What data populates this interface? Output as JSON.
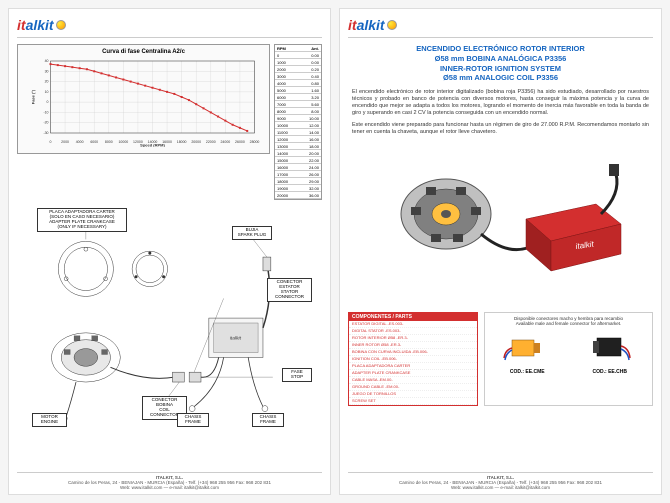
{
  "logo": {
    "part1": "it",
    "part2": "alkit"
  },
  "page1": {
    "chart": {
      "title": "Curva di fase Centralina A2/c",
      "xlabel": "Speed (RPM)",
      "ylabel": "Fase (°)",
      "xmin": 0,
      "xmax": 28000,
      "ymin": -30,
      "ymax": 40,
      "xticks": [
        0,
        2000,
        4000,
        6000,
        8000,
        10000,
        12000,
        14000,
        16000,
        18000,
        20000,
        22000,
        24000,
        26000,
        28000
      ],
      "yticks": [
        -30,
        -20,
        -10,
        0,
        10,
        20,
        30,
        40
      ],
      "line_color": "#d32f2f",
      "grid_color": "#cccccc",
      "points": [
        [
          0,
          37
        ],
        [
          1000,
          36
        ],
        [
          2000,
          35
        ],
        [
          3000,
          34
        ],
        [
          4000,
          33
        ],
        [
          5000,
          32
        ],
        [
          6000,
          30
        ],
        [
          7000,
          28
        ],
        [
          8000,
          26
        ],
        [
          9000,
          24
        ],
        [
          10000,
          22
        ],
        [
          11000,
          20
        ],
        [
          12000,
          18
        ],
        [
          13000,
          16
        ],
        [
          14000,
          14
        ],
        [
          15000,
          12
        ],
        [
          16000,
          10
        ],
        [
          17000,
          8
        ],
        [
          18000,
          5
        ],
        [
          19000,
          2
        ],
        [
          20000,
          -2
        ],
        [
          21000,
          -6
        ],
        [
          22000,
          -10
        ],
        [
          23000,
          -14
        ],
        [
          24000,
          -18
        ],
        [
          25000,
          -22
        ],
        [
          26000,
          -25
        ],
        [
          27000,
          -28
        ]
      ],
      "table": [
        [
          "RPM",
          "Ant."
        ],
        [
          "0",
          "0.00"
        ],
        [
          "1000",
          "0.00"
        ],
        [
          "2000",
          "0.20"
        ],
        [
          "3000",
          "0.40"
        ],
        [
          "4000",
          "0.80"
        ],
        [
          "5000",
          "1.60"
        ],
        [
          "6000",
          "3.20"
        ],
        [
          "7000",
          "5.60"
        ],
        [
          "8000",
          "8.00"
        ],
        [
          "9000",
          "10.00"
        ],
        [
          "10000",
          "12.00"
        ],
        [
          "11000",
          "14.00"
        ],
        [
          "12000",
          "16.00"
        ],
        [
          "13000",
          "18.00"
        ],
        [
          "14000",
          "20.00"
        ],
        [
          "15000",
          "22.00"
        ],
        [
          "16000",
          "24.00"
        ],
        [
          "17000",
          "26.00"
        ],
        [
          "18000",
          "29.00"
        ],
        [
          "19000",
          "32.00"
        ],
        [
          "20000",
          "36.00"
        ]
      ]
    },
    "labels": {
      "adapter": "PLACA ADAPTADORA CARTER\n(SOLO EN CASO NECESARIO)\nADAPTER PLATE CRANKCASE\n(ONLY IF NECESSARY)",
      "sparkplug": "BUJIA\nSPARK PLUG",
      "stator": "CONECTOR\nESTATOR\nSTATOR\nCONNECTOR",
      "phase": "FASE\nSTOP",
      "coil": "CONECTOR\nBOBINA\nCOIL\nCONNECTOR",
      "engine": "MOTOR\nENGINE",
      "frame1": "CHASIS\nFRAME",
      "frame2": "CHASIS\nFRAME"
    }
  },
  "page2": {
    "title": {
      "l1": "ENCENDIDO ELECTRÓNICO ROTOR INTERIOR",
      "l2": "Ø58 mm BOBINA ANALÓGICA P3356",
      "l3": "INNER-ROTOR IGNITION SYSTEM",
      "l4": "Ø58 mm ANALOGIC COIL P3356"
    },
    "body1": "El encendido electrónico de rotor interior digitalizado (bobina roja P3356) ha sido estudiado, desarrollado por nuestros técnicos y probado en banco de potencia con diversos motores, hasta conseguir la máxima potencia y la curva de encendido que mejor se adapta a todos los motores, logrando el momento de inercia más favorable en toda la banda de giro y superando en casi 2 CV la potencia conseguida con un encendido normal.",
    "body2": "Este encendido viene preparado para funcionar hasta un régimen de giro de 27.000 R.P.M. Recomendamos montarlo sin tener en cuenta la chaveta, aunque el rotor lleve chavetero.",
    "parts_header": "COMPONENTES / PARTS",
    "parts": [
      "ESTATOR DIGITAL -ES.003-",
      "DIGITAL STATOR -ES.003-",
      "ROTOR INTERIOR Ø58 -ER.3-",
      "INNER ROTOR Ø58 -ER.3-",
      "BOBINA CON CURVA INCLUIDA -EB.006-",
      "IGNITION COIL -EB.006-",
      "PLACA ADAPTADORA CARTER",
      "ADAPTER PLATE CRANKCASE",
      "CABLE MASA -EM.00-",
      "GROUND CABLE -EM.00-",
      "JUEGO DE TORNILLOS",
      "SCREW SET"
    ],
    "connectors": {
      "desc": "Disponible conectores macho y hembra para recambio\nAvailable male and female connector for aftermarket.",
      "c1": "COD.: EE.CME",
      "c2": "COD.: EE.CHB"
    }
  },
  "footer": {
    "company": "ITALKIT, S.L.",
    "addr": "Camino de los Peras, 24 - BENIAJAN - MURCIA (España) - Telf. (+34) 968 255 956 Fax: 968 202 831",
    "web": "Web: www.italkit.com — e-mail: italkit@italkit.com"
  }
}
